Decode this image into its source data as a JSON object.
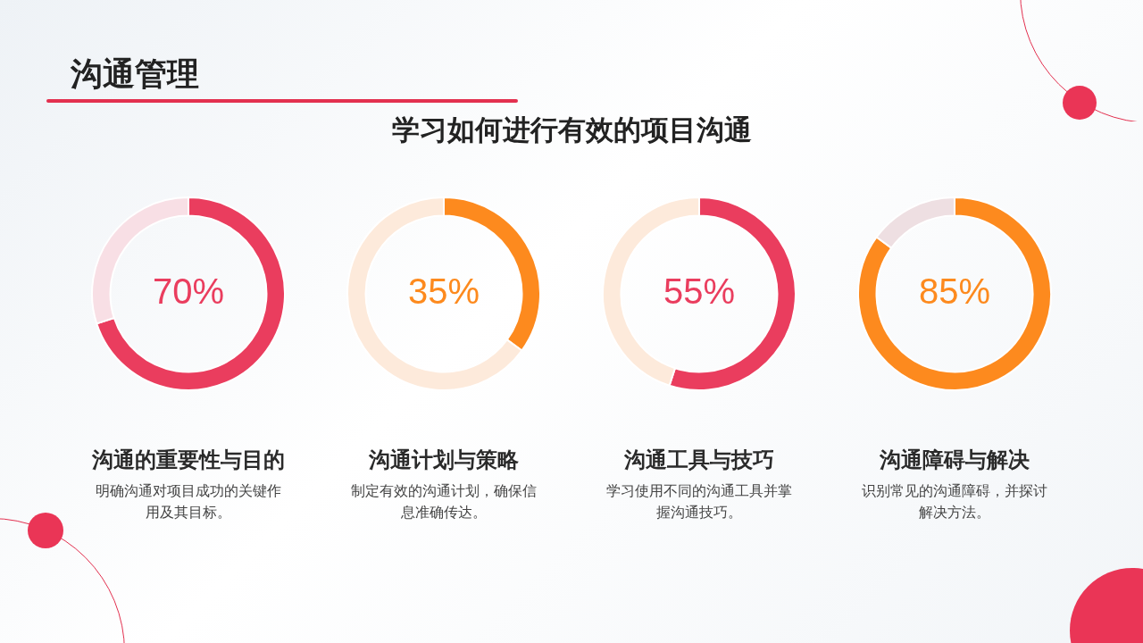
{
  "chart_data": [
    {
      "type": "other",
      "title": "沟通管理",
      "subtitle": "学习如何进行有效的项目沟通"
    },
    {
      "type": "donut",
      "title": "沟通的重要性与目的",
      "annotations": [
        "明确沟通对项目成功的关键作用及其目标。"
      ],
      "categories": [
        null,
        null
      ],
      "values": [
        70,
        30
      ],
      "colors": [
        "#ea3d5e",
        "#f8dfe5"
      ],
      "value_labels": [
        "70%",
        null
      ]
    },
    {
      "type": "donut",
      "title": "沟通计划与策略",
      "annotations": [
        "制定有效的沟通计划，确保信息准确传达。"
      ],
      "categories": [
        null,
        null
      ],
      "values": [
        35,
        65
      ],
      "colors": [
        "#fd8a1e",
        "#fdeadb"
      ],
      "value_labels": [
        "35%",
        null
      ]
    },
    {
      "type": "donut",
      "title": "沟通工具与技巧",
      "annotations": [
        "学习使用不同的沟通工具并掌握沟通技巧。"
      ],
      "categories": [
        null,
        null
      ],
      "values": [
        55,
        45
      ],
      "colors": [
        "#ea3d5e",
        "#fdeadb"
      ],
      "value_labels": [
        "55%",
        null
      ]
    },
    {
      "type": "donut",
      "title": "沟通障碍与解决",
      "annotations": [
        "识别常见的沟通障碍，并探讨解决方法。"
      ],
      "categories": [
        null,
        null
      ],
      "values": [
        85,
        15
      ],
      "colors": [
        "#fd8a1e",
        "#eedfe2"
      ],
      "value_labels": [
        "85%",
        null
      ]
    }
  ]
}
